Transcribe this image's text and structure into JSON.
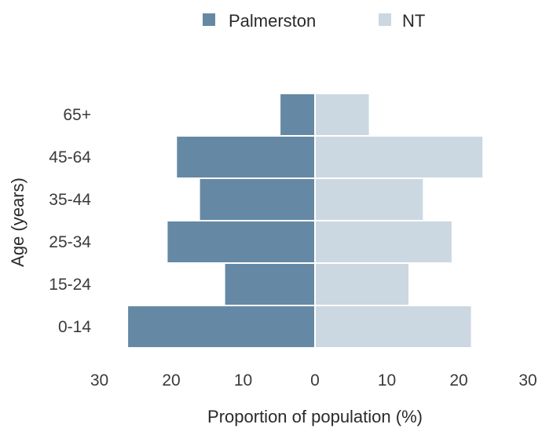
{
  "chart_data": {
    "type": "bar",
    "orientation": "horizontal-diverging",
    "categories": [
      "0-14",
      "15-24",
      "25-34",
      "35-44",
      "45-64",
      "65+"
    ],
    "series": [
      {
        "name": "Palmerston",
        "side": "left",
        "color": "#6589a4",
        "values": [
          26.0,
          12.5,
          20.5,
          16.0,
          19.2,
          4.8
        ]
      },
      {
        "name": "NT",
        "side": "right",
        "color": "#cbd8e2",
        "values": [
          21.7,
          13.0,
          19.0,
          15.0,
          23.3,
          7.5
        ]
      }
    ],
    "xlabel": "Proportion of population (%)",
    "ylabel": "Age (years)",
    "xlim": [
      -30,
      30
    ],
    "x_ticks": [
      "30",
      "20",
      "10",
      "0",
      "10",
      "20",
      "30"
    ],
    "legend_position": "top-center",
    "grid": false
  }
}
